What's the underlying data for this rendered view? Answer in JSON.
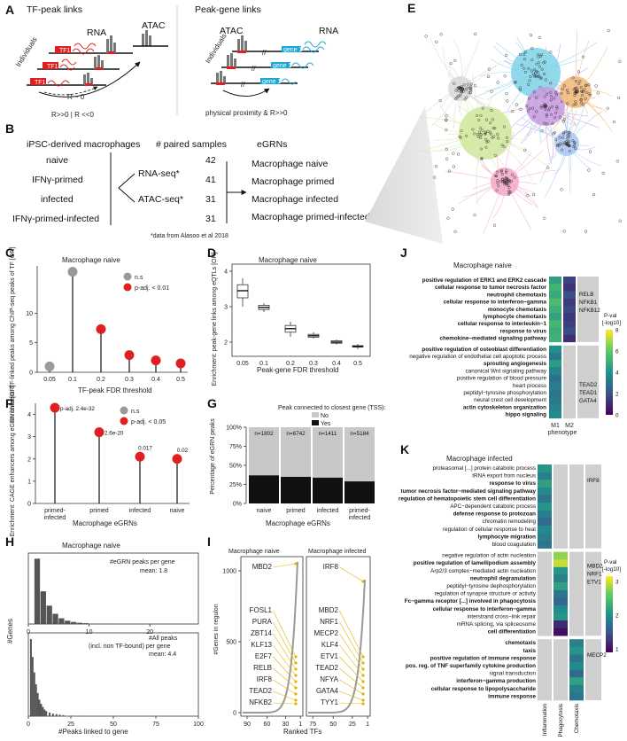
{
  "panels": {
    "A": "A",
    "B": "B",
    "C": "C",
    "D": "D",
    "E": "E",
    "F": "F",
    "G": "G",
    "H": "H",
    "I": "I",
    "J": "J",
    "K": "K"
  },
  "panelA": {
    "left_title": "TF-peak links",
    "right_title": "Peak-gene links",
    "rna": "RNA",
    "atac": "ATAC",
    "individuals": "Individuals",
    "tf": "TF1",
    "gene": "gene 1",
    "r_label": "R ~ 0",
    "left_caption": "R>>0 | R <<0",
    "right_caption": "physical proximity & R>>0"
  },
  "panelB": {
    "col1_title": "iPSC-derived macrophages",
    "col2_title": "# paired samples",
    "col3_title": "eGRNs",
    "conditions": [
      "naive",
      "IFNγ-primed",
      "infected",
      "IFNγ-primed-infected"
    ],
    "samples": [
      "42",
      "41",
      "31",
      "31"
    ],
    "assays": [
      "RNA-seq*",
      "ATAC-seq*"
    ],
    "egrns": [
      "Macrophage naive",
      "Macrophage primed",
      "Macrophage infected",
      "Macrophage primed-infected"
    ],
    "footnote": "*data from Alasoo et al 2018"
  },
  "panelC": {
    "title": "Macrophage naive",
    "ylabel": "Enrichment: TF-linked peaks among ChIP-seq peaks of TF [OR]",
    "xlabel": "TF-peak FDR threshold",
    "legend": [
      "n.s",
      "p-adj. < 0.01"
    ]
  },
  "panelD": {
    "title": "Macrophage naive",
    "ylabel": "Enrichment: peak-gene links among eQTLs [OR]",
    "xlabel": "Peak-gene FDR threshold"
  },
  "panelF": {
    "ylabel": "Enrichment: CAGE enhancers among eGRN links [OR]",
    "xlabel": "Macrophage eGRNs",
    "legend": [
      "n.s",
      "p-adj. < 0.05"
    ],
    "pvals": [
      "p-adj. 2.4e-32",
      "2.6e-20",
      "0.017",
      "0.02"
    ]
  },
  "panelG": {
    "ylabel": "Percentage of eGRN peaks",
    "xlabel": "Macrophage eGRNs",
    "legend_title": "Peak connected to closest gene (TSS):",
    "legend": [
      "No",
      "Yes"
    ]
  },
  "panelH": {
    "title": "Macrophage naive",
    "ylabel": "#Genes",
    "xlabel": "#Peaks linked to gene",
    "top_note_1": "#eGRN peaks per gene",
    "top_note_2": "mean: 1.8",
    "bot_note_1": "#All peaks",
    "bot_note_2": "(incl. non TF-bound) per gene",
    "bot_note_3": "mean: 4.4"
  },
  "panelI": {
    "left_title": "Macrophage naive",
    "right_title": "Macrophage infected",
    "ylabel": "#Genes in regulon",
    "xlabel": "Ranked TFs",
    "left_tfs": [
      "MBD2",
      "FOSL1",
      "PURA",
      "ZBT14",
      "KLF13",
      "E2F7",
      "RELB",
      "IRF8",
      "TEAD2",
      "NFKB2"
    ],
    "right_tfs": [
      "IRF8",
      "MBD2",
      "NRF1",
      "MECP2",
      "KLF4",
      "ETV1",
      "TEAD2",
      "NFYA",
      "GATA4",
      "TYY1"
    ]
  },
  "panelJ": {
    "title": "Macrophage naive",
    "terms": [
      {
        "t": "positive regulation of ERK1 and ERK2 cascade",
        "b": true
      },
      {
        "t": "cellular response to tumor necrosis factor",
        "b": true
      },
      {
        "t": "neutrophil chemotaxis",
        "b": true
      },
      {
        "t": "cellular response to interferon−gamma",
        "b": true
      },
      {
        "t": "monocyte chemotaxis",
        "b": true
      },
      {
        "t": "lymphocyte chemotaxis",
        "b": true
      },
      {
        "t": "cellular response to interleukin−1",
        "b": true
      },
      {
        "t": "response to virus",
        "b": true
      },
      {
        "t": "chemokine−mediated signaling pathway",
        "b": true
      },
      {
        "t": "positive regulation of osteoblast differentiation",
        "b": true
      },
      {
        "t": "negative regulation of endothelial cell apoptotic process",
        "b": false
      },
      {
        "t": "sprouting angiogenesis",
        "b": true
      },
      {
        "t": "canonical Wnt signaling pathway",
        "b": false
      },
      {
        "t": "positive regulation of blood pressure",
        "b": false
      },
      {
        "t": "heart process",
        "b": false
      },
      {
        "t": "peptidyl−tyrosine phosphorylation",
        "b": false
      },
      {
        "t": "neural crest cell development",
        "b": false
      },
      {
        "t": "actin cytoskeleton organization",
        "b": true
      },
      {
        "t": "hippo signaling",
        "b": true
      }
    ],
    "tf_groups": [
      [
        "RELB",
        "NFKB1",
        "NFKB12"
      ],
      [
        "TEAD2",
        "TEAD1",
        "GATA4"
      ]
    ],
    "xlabels": [
      "M1",
      "M2"
    ],
    "xtitle": "phenotype",
    "legend_title": [
      "P-val",
      "[-log10]"
    ],
    "legend_ticks": [
      "8",
      "6",
      "4",
      "2",
      "0"
    ]
  },
  "panelK": {
    "title": "Macrophage infected",
    "terms": [
      {
        "t": "proteasomal [...] protein catabolic process",
        "b": false
      },
      {
        "t": "tRNA export from nucleus",
        "b": false
      },
      {
        "t": "response to virus",
        "b": true
      },
      {
        "t": "tumor necrosis factor−mediated signaling pathway",
        "b": true
      },
      {
        "t": "regulation of hematopoietic stem cell differentiation",
        "b": true
      },
      {
        "t": "APC−dependent catabolic process",
        "b": false
      },
      {
        "t": "defense response to protozoan",
        "b": true
      },
      {
        "t": "chromatin remodeling",
        "b": false
      },
      {
        "t": "regulation of cellular response to heat",
        "b": false
      },
      {
        "t": "lymphocyte migration",
        "b": true
      },
      {
        "t": "blood coagulation",
        "b": false
      },
      {
        "t": "negative regulation of actin nucleation",
        "b": false
      },
      {
        "t": "positive regulation of lamellipodium assembly",
        "b": true
      },
      {
        "t": "Arp2/3 complex−mediated actin nucleation",
        "b": false
      },
      {
        "t": "neutrophil degranulation",
        "b": true
      },
      {
        "t": "peptidyl−tyrosine dephosphorylation",
        "b": false
      },
      {
        "t": "regulation of synapse structure or activity",
        "b": false
      },
      {
        "t": "Fc−gamma receptor [...] involved in phagocytosis",
        "b": true
      },
      {
        "t": "cellular response to interferon−gamma",
        "b": true
      },
      {
        "t": "interstrand cross−link repair",
        "b": false
      },
      {
        "t": "mRNA splicing, via spliceosome",
        "b": false
      },
      {
        "t": "cell differentiation",
        "b": true
      },
      {
        "t": "chemotaxis",
        "b": true
      },
      {
        "t": "taxis",
        "b": true
      },
      {
        "t": "positive regulation of immune response",
        "b": true
      },
      {
        "t": "pos. reg. of TNF superfamily cytokine production",
        "b": true
      },
      {
        "t": "signal transduction",
        "b": false
      },
      {
        "t": "interferon−gamma production",
        "b": true
      },
      {
        "t": "cellular response to lipopolysaccharide",
        "b": true
      },
      {
        "t": "immune response",
        "b": true
      }
    ],
    "tf_groups": [
      [
        "IRF8"
      ],
      [
        "MBD2",
        "NRF1",
        "ETV1"
      ],
      [
        "MECP2"
      ]
    ],
    "xlabels": [
      "Inflammation",
      "Phagocytosis",
      "Chemotaxis"
    ],
    "legend_title": [
      "P-val",
      "[-log10]"
    ],
    "legend_ticks": [
      "3",
      "2",
      "1"
    ]
  },
  "chart_data": [
    {
      "id": "C",
      "type": "scatter",
      "x": [
        0.05,
        0.1,
        0.2,
        0.3,
        0.4,
        0.5
      ],
      "y": [
        1.0,
        17.0,
        7.3,
        2.9,
        2.0,
        1.5
      ],
      "significant": [
        false,
        false,
        true,
        true,
        true,
        true
      ],
      "xticks": [
        "0.05",
        "0.1",
        "0.2",
        "0.3",
        "0.4",
        "0.5"
      ],
      "yticks": [
        "0",
        "5",
        "10"
      ],
      "ylim": [
        0,
        18
      ]
    },
    {
      "id": "D",
      "type": "box",
      "categories": [
        "0.05",
        "0.1",
        "0.2",
        "0.3",
        "0.4",
        "0.5"
      ],
      "median": [
        3.45,
        2.98,
        2.38,
        2.18,
        2.0,
        1.88
      ],
      "q1": [
        3.25,
        2.92,
        2.28,
        2.14,
        1.97,
        1.86
      ],
      "q3": [
        3.62,
        3.04,
        2.47,
        2.22,
        2.04,
        1.9
      ],
      "lo": [
        3.0,
        2.85,
        2.15,
        2.1,
        1.93,
        1.8
      ],
      "hi": [
        3.8,
        3.1,
        2.58,
        2.28,
        2.07,
        1.95
      ],
      "yticks": [
        "2",
        "3",
        "4"
      ],
      "ylim": [
        1.6,
        4.2
      ]
    },
    {
      "id": "F",
      "type": "scatter",
      "categories": [
        "primed-infected",
        "primed",
        "infected",
        "naive"
      ],
      "values": [
        4.3,
        3.2,
        2.1,
        2.0
      ],
      "significant": [
        true,
        true,
        true,
        true
      ],
      "yticks": [
        "0",
        "1",
        "2",
        "3",
        "4"
      ],
      "ylim": [
        0,
        4.5
      ]
    },
    {
      "id": "G",
      "type": "bar",
      "categories": [
        "naive",
        "primed",
        "infected",
        "primed-infected"
      ],
      "series": [
        {
          "name": "Yes",
          "values": [
            37,
            35,
            34,
            29
          ]
        },
        {
          "name": "No",
          "values": [
            63,
            65,
            66,
            71
          ]
        }
      ],
      "n_labels": [
        "n=1802",
        "n=6742",
        "n=1411",
        "n=5184"
      ],
      "yticks": [
        "0%",
        "25%",
        "50%",
        "75%",
        "100%"
      ],
      "ylim": [
        0,
        100
      ]
    },
    {
      "id": "H-top",
      "type": "bar",
      "bins": [
        1,
        2,
        3,
        4,
        5,
        6,
        7,
        8,
        9,
        10,
        11,
        12
      ],
      "values": [
        160,
        80,
        45,
        25,
        14,
        8,
        5,
        3,
        2,
        1,
        1,
        1
      ],
      "xticks": [
        "0",
        "10",
        "20"
      ],
      "xlim": [
        0,
        28
      ]
    },
    {
      "id": "H-bottom",
      "type": "bar",
      "bins": [
        1,
        2,
        3,
        4,
        5,
        6,
        7,
        8,
        9,
        10,
        12,
        14,
        16,
        18,
        20,
        25,
        30
      ],
      "values": [
        150,
        115,
        85,
        62,
        45,
        32,
        24,
        18,
        13,
        10,
        7,
        5,
        4,
        3,
        2,
        1,
        1
      ],
      "xticks": [
        "0",
        "25",
        "50",
        "75",
        "100"
      ],
      "xlim": [
        0,
        100
      ]
    },
    {
      "id": "I-left",
      "type": "line",
      "xticks": [
        "90",
        "60",
        "30",
        "1"
      ],
      "yticks": [
        "0",
        "500",
        "1000"
      ]
    },
    {
      "id": "I-right",
      "type": "line",
      "xticks": [
        "75",
        "50",
        "25",
        "1"
      ]
    },
    {
      "id": "J",
      "type": "heatmap",
      "columns": [
        "M1",
        "M2"
      ],
      "values_m1": [
        4.5,
        5.2,
        4.8,
        5.5,
        5.0,
        4.6,
        5.3,
        4.9,
        5.1,
        4.0,
        3.2,
        4.4,
        3.6,
        3.0,
        3.4,
        3.1,
        3.3,
        3.5,
        3.8
      ],
      "values_m2": [
        1.6,
        1.2,
        1.9,
        1.4,
        1.7,
        1.3,
        1.5,
        1.8,
        1.1,
        null,
        null,
        null,
        null,
        null,
        null,
        null,
        null,
        null,
        null
      ],
      "scale": [
        0,
        8
      ]
    },
    {
      "id": "K",
      "type": "heatmap",
      "columns": [
        "Inflammation",
        "Phagocytosis",
        "Chemotaxis"
      ],
      "values_infl": [
        2.2,
        2.0,
        2.3,
        2.1,
        1.9,
        2.2,
        2.0,
        1.8,
        2.1,
        2.0,
        1.9
      ],
      "values_phago": [
        2.9,
        3.1,
        2.2,
        2.0,
        2.3,
        1.9,
        1.8,
        2.1,
        2.2,
        1.3,
        1.1
      ],
      "values_chemo": [
        2.0,
        2.2,
        1.9,
        2.1,
        1.8,
        2.3,
        2.0,
        1.9
      ],
      "scale": [
        1,
        3.3
      ]
    }
  ]
}
